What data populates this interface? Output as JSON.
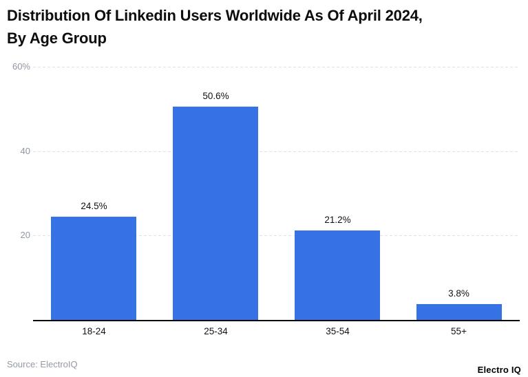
{
  "header": {
    "title_line1": "Distribution Of Linkedin Users Worldwide As Of April 2024,",
    "title_line2": "By Age Group"
  },
  "chart_data": {
    "type": "bar",
    "title": "Distribution Of Linkedin Users Worldwide As Of April 2024, By Age Group",
    "categories": [
      "18-24",
      "25-34",
      "35-54",
      "55+"
    ],
    "values": [
      24.5,
      50.6,
      21.2,
      3.8
    ],
    "value_labels": [
      "24.5%",
      "50.6%",
      "21.2%",
      "3.8%"
    ],
    "xlabel": "",
    "ylabel": "",
    "ylim": [
      0,
      60
    ],
    "y_ticks": [
      {
        "value": 20,
        "label": "20"
      },
      {
        "value": 40,
        "label": "40"
      },
      {
        "value": 60,
        "label": "60%"
      }
    ],
    "grid": "horizontal-dashed",
    "legend": false,
    "bar_color": "#3672e3",
    "axis_label_color": "#8f96a1",
    "gridline_color": "#dfe1e6",
    "baseline_color": "#000000"
  },
  "footer": {
    "source": "Source: ElectroIQ",
    "brand": "Electro IQ"
  }
}
